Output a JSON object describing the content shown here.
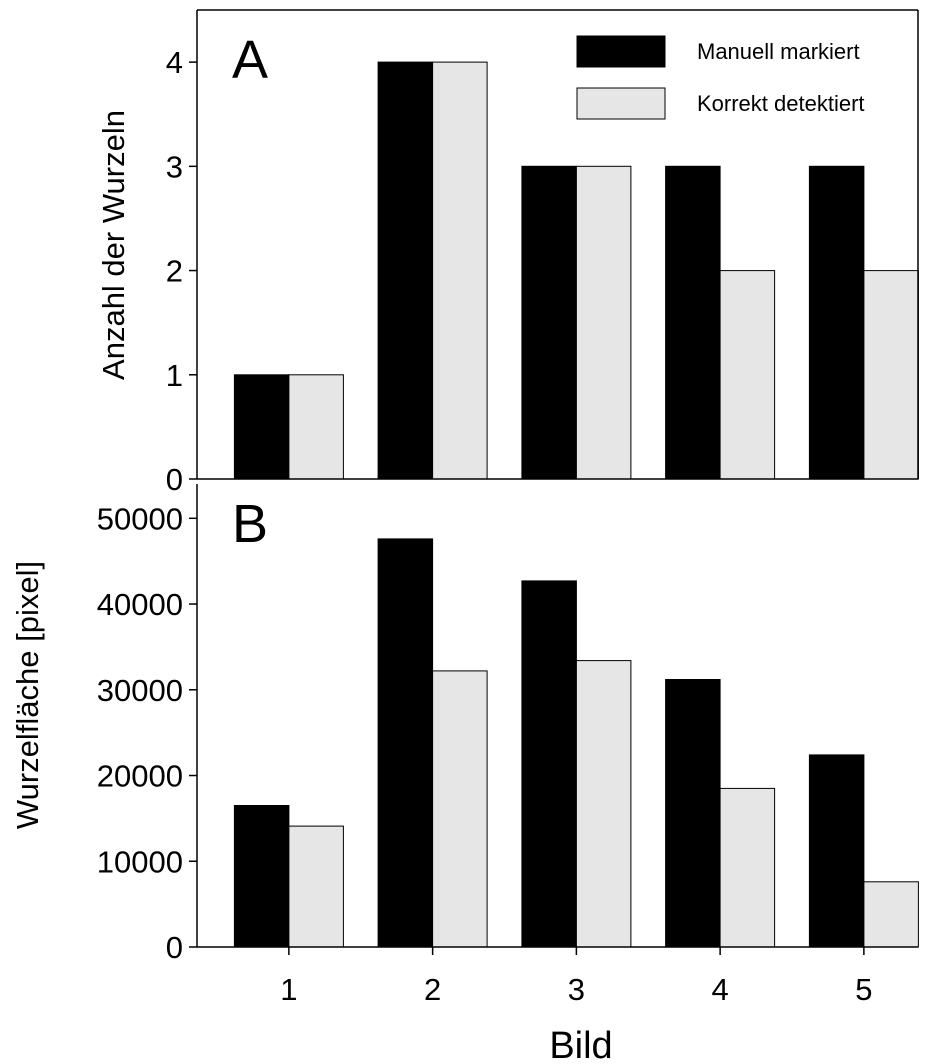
{
  "colors": {
    "manual": "#000000",
    "detected": "#e6e6e6",
    "axis": "#000000",
    "background": "#ffffff"
  },
  "chart_data": [
    {
      "type": "bar",
      "panel_label": "A",
      "categories": [
        "1",
        "2",
        "3",
        "4",
        "5"
      ],
      "series": [
        {
          "name": "Manuell markiert",
          "values": [
            1,
            4,
            3,
            3,
            3
          ]
        },
        {
          "name": "Korrekt detektiert",
          "values": [
            1,
            4,
            3,
            2,
            2
          ]
        }
      ],
      "ylabel": "Anzahl der Wurzeln",
      "ylim": [
        0,
        4.5
      ],
      "yticks": [
        "0",
        "1",
        "2",
        "3",
        "4"
      ],
      "legend": {
        "placement": "top-right",
        "entries": [
          "Manuell markiert",
          "Korrekt detektiert"
        ]
      },
      "grid": false
    },
    {
      "type": "bar",
      "panel_label": "B",
      "categories": [
        "1",
        "2",
        "3",
        "4",
        "5"
      ],
      "series": [
        {
          "name": "Manuell markiert",
          "values": [
            16500,
            47600,
            42700,
            31200,
            22400
          ]
        },
        {
          "name": "Korrekt detektiert",
          "values": [
            14100,
            32200,
            33400,
            18500,
            7600
          ]
        }
      ],
      "xlabel": "Bild",
      "ylabel": "Wurzelfläche [pixel]",
      "ylim": [
        0,
        54000
      ],
      "yticks": [
        "0",
        "10000",
        "20000",
        "30000",
        "40000",
        "50000"
      ],
      "grid": false
    }
  ]
}
